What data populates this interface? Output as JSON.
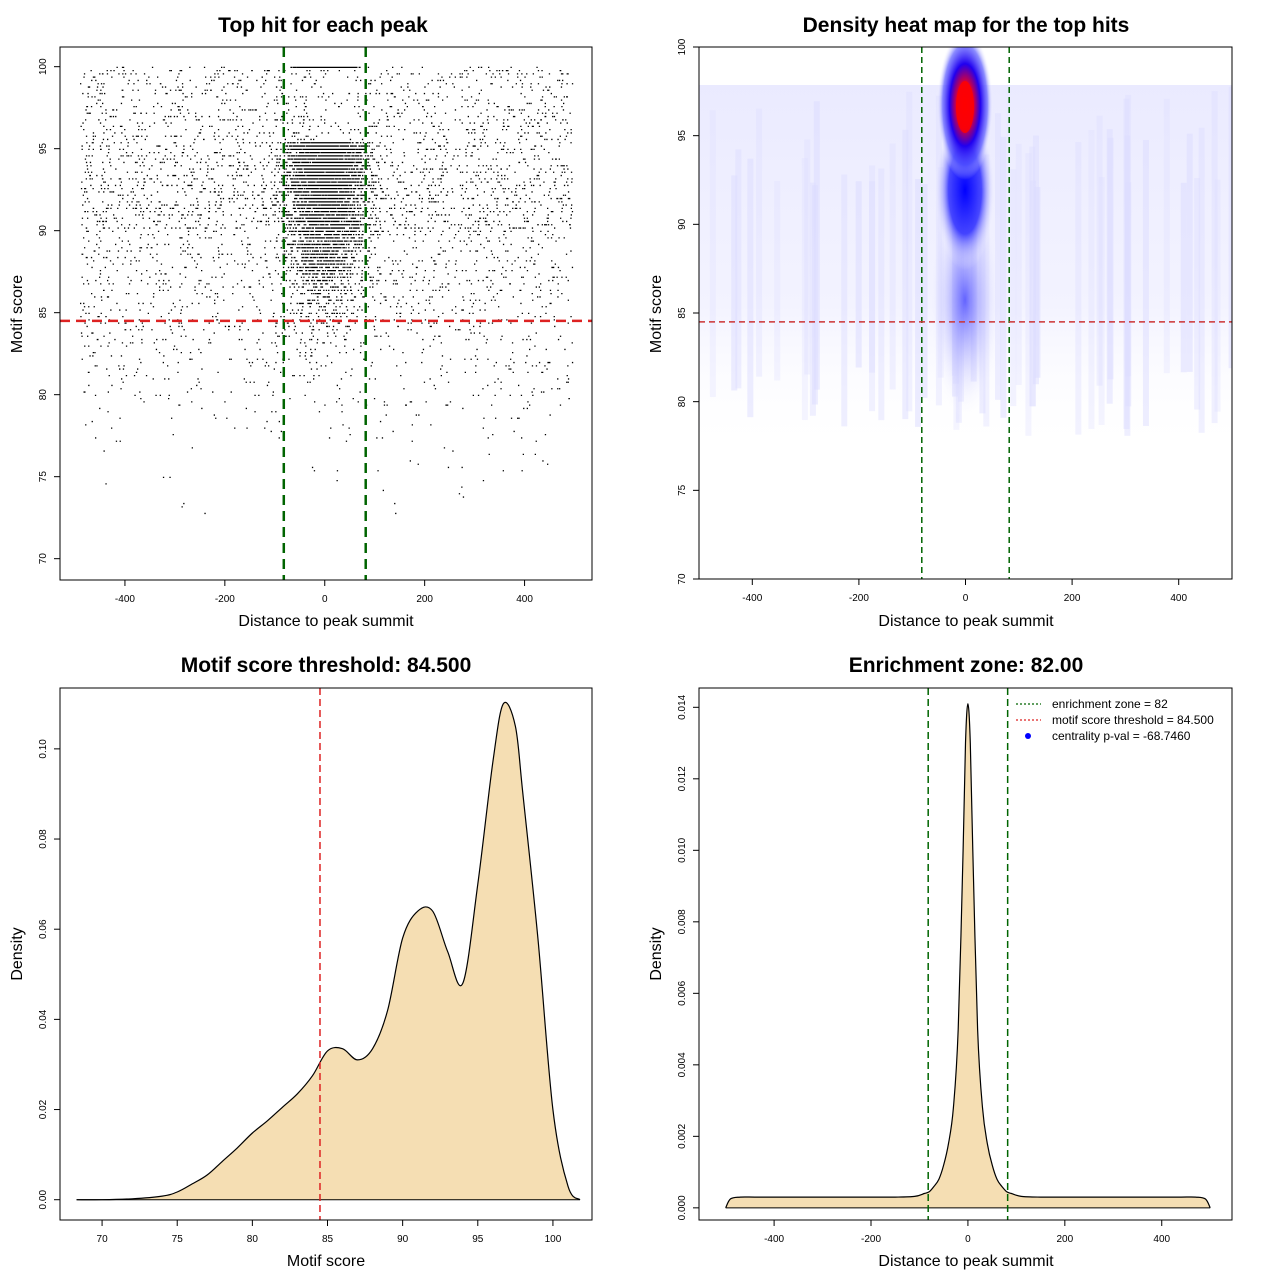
{
  "chart_data": [
    {
      "id": "scatter",
      "type": "scatter",
      "title": "Top hit for each peak",
      "xlabel": "Distance to peak summit",
      "ylabel": "Motif score",
      "xlim": [
        -530,
        535
      ],
      "ylim": [
        68.7,
        101.2
      ],
      "xticks": [
        -400,
        -200,
        0,
        200,
        400
      ],
      "yticks": [
        70,
        75,
        80,
        85,
        90,
        95,
        100
      ],
      "points_description": "dense points at x in [-500,500], y in [70,100]; strongly concentrated near x=0 and y>=88",
      "cloud": {
        "x_range": [
          -490,
          495
        ],
        "y_range": [
          70,
          100
        ],
        "center_x": 0
      },
      "vlines": [
        {
          "x": -82,
          "color": "#006400"
        },
        {
          "x": 82,
          "color": "#006400"
        }
      ],
      "hlines": [
        {
          "y": 84.5,
          "color": "#dd2222"
        }
      ],
      "grid": false,
      "colors": {
        "points": "#000000"
      }
    },
    {
      "id": "heatmap",
      "type": "heatmap",
      "title": "Density heat map for the top hits",
      "xlabel": "Distance to peak summit",
      "ylabel": "Motif score",
      "xlim": [
        -500,
        500
      ],
      "ylim": [
        70,
        100
      ],
      "xticks": [
        -400,
        -200,
        0,
        200,
        400
      ],
      "yticks": [
        70,
        75,
        80,
        85,
        90,
        95,
        100
      ],
      "hotspots": [
        {
          "x": 0,
          "y": 97,
          "level": "high"
        },
        {
          "x": 0,
          "y": 92.5,
          "level": "medium"
        }
      ],
      "vlines": [
        {
          "x": -82,
          "color": "#006400"
        },
        {
          "x": 82,
          "color": "#006400"
        }
      ],
      "hlines": [
        {
          "y": 84.5,
          "color": "#cc3333"
        }
      ],
      "colors": {
        "low": "#ffffff",
        "mid": "#0000ff",
        "high": "#ff0000"
      }
    },
    {
      "id": "score_density",
      "type": "area",
      "title": "Motif score threshold: 84.500",
      "xlabel": "Motif score",
      "ylabel": "Density",
      "xlim": [
        67.2,
        102.6
      ],
      "ylim": [
        -0.0045,
        0.1135
      ],
      "xticks": [
        70,
        75,
        80,
        85,
        90,
        95,
        100
      ],
      "yticks": [
        0.0,
        0.02,
        0.04,
        0.06,
        0.08,
        0.1
      ],
      "ytick_labels": [
        "0.00",
        "0.02",
        "0.04",
        "0.06",
        "0.08",
        "0.10"
      ],
      "x": [
        68.3,
        70,
        72,
        74,
        75,
        76,
        77,
        78,
        79,
        80,
        81,
        82,
        83,
        84,
        85,
        86,
        87,
        88,
        89,
        90,
        91,
        92,
        93,
        94,
        95,
        96,
        96.7,
        97.5,
        98,
        99,
        100,
        101,
        101.8
      ],
      "y": [
        0.0,
        0.0,
        0.0002,
        0.0008,
        0.0017,
        0.0035,
        0.0055,
        0.0085,
        0.0115,
        0.0148,
        0.0175,
        0.0205,
        0.0235,
        0.0275,
        0.033,
        0.0335,
        0.031,
        0.0335,
        0.042,
        0.058,
        0.064,
        0.064,
        0.055,
        0.048,
        0.07,
        0.097,
        0.11,
        0.105,
        0.09,
        0.058,
        0.02,
        0.003,
        0.0
      ],
      "vlines": [
        {
          "x": 84.5,
          "color": "#dd2222"
        }
      ],
      "colors": {
        "fill": "#f5deb3",
        "line": "#000000"
      }
    },
    {
      "id": "distance_density",
      "type": "area",
      "title": "Enrichment zone: 82.00",
      "xlabel": "Distance to peak summit",
      "ylabel": "Density",
      "xlim": [
        -555,
        545
      ],
      "ylim": [
        -0.00034,
        0.01454
      ],
      "xticks": [
        -400,
        -200,
        0,
        200,
        400
      ],
      "yticks": [
        0.0,
        0.002,
        0.004,
        0.006,
        0.008,
        0.01,
        0.012,
        0.014
      ],
      "ytick_labels": [
        "0.000",
        "0.002",
        "0.004",
        "0.006",
        "0.008",
        "0.010",
        "0.012",
        "0.014"
      ],
      "x": [
        -500,
        -490,
        -470,
        -440,
        -400,
        -350,
        -300,
        -250,
        -200,
        -150,
        -110,
        -90,
        -80,
        -70,
        -60,
        -50,
        -40,
        -30,
        -20,
        -10,
        -5,
        0,
        5,
        10,
        20,
        30,
        40,
        50,
        60,
        70,
        80,
        90,
        110,
        150,
        200,
        250,
        300,
        350,
        400,
        440,
        470,
        490,
        500
      ],
      "y": [
        0.0,
        0.00025,
        0.0003,
        0.0003,
        0.0003,
        0.0003,
        0.0003,
        0.0003,
        0.0003,
        0.0003,
        0.00032,
        0.0004,
        0.00045,
        0.0006,
        0.0008,
        0.0012,
        0.0018,
        0.0028,
        0.005,
        0.01,
        0.013,
        0.0141,
        0.013,
        0.01,
        0.005,
        0.0028,
        0.0018,
        0.0012,
        0.0008,
        0.0006,
        0.00045,
        0.0004,
        0.00032,
        0.0003,
        0.0003,
        0.0003,
        0.0003,
        0.0003,
        0.0003,
        0.0003,
        0.0003,
        0.00025,
        0.0
      ],
      "vlines": [
        {
          "x": -82,
          "color": "#006400"
        },
        {
          "x": 82,
          "color": "#006400"
        }
      ],
      "legend": {
        "position": "top-right",
        "entries": [
          {
            "label": "enrichment zone = 82",
            "color": "#006400",
            "style": "dotted-line"
          },
          {
            "label": "motif score threshold = 84.500",
            "color": "#dd2222",
            "style": "dotted-line"
          },
          {
            "label": "centrality p-val = -68.7460",
            "color": "#0000ff",
            "style": "point"
          }
        ]
      },
      "colors": {
        "fill": "#f5deb3",
        "line": "#000000"
      }
    }
  ]
}
